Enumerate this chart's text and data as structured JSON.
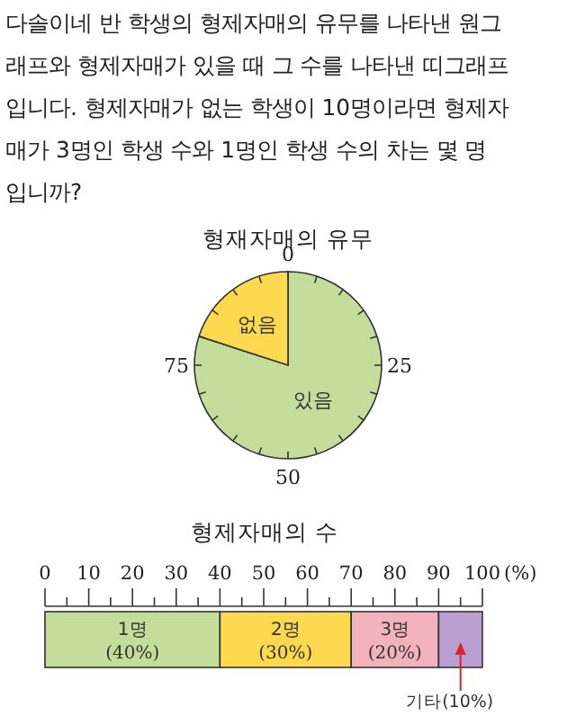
{
  "chart_data": [
    {
      "type": "other",
      "annotations": [
        "다솔이네 반 학생의 형제자매의 유무를 나타낸 원그",
        "래프와 형제자매가 있을 때 그 수를 나타낸 띠그래프",
        "입니다. 형제자매가 없는 학생이 10명이라면 형제자",
        "매가 3명인 학생 수와 1명인 학생 수의 차는 몇 명",
        "입니까?"
      ]
    },
    {
      "type": "pie",
      "title": "형재자매의 유무",
      "categories": [
        "있음",
        "없음"
      ],
      "values": [
        80,
        20
      ],
      "colors": [
        "#c5dd9a",
        "#fdd94f"
      ],
      "annotations": [
        "0",
        "25",
        "50",
        "75"
      ]
    },
    {
      "type": "bar",
      "title": "형제자매의 수",
      "orientation": "horizontal",
      "stacked": true,
      "categories": [
        null
      ],
      "xlim": [
        0,
        100
      ],
      "xticks": [
        0,
        10,
        20,
        30,
        40,
        50,
        60,
        70,
        80,
        90,
        100
      ],
      "xlabel": "(%)",
      "series": [
        {
          "name": "1명",
          "color": "#c5dd9a",
          "values": [
            40
          ],
          "value_labels": [
            "(40%)"
          ]
        },
        {
          "name": "2명",
          "color": "#fdd94f",
          "values": [
            30
          ],
          "value_labels": [
            "(30%)"
          ]
        },
        {
          "name": "3명",
          "color": "#f2b3bd",
          "values": [
            20
          ],
          "value_labels": [
            "(20%)"
          ]
        },
        {
          "name": "기타",
          "color": "#b9a0d0",
          "values": [
            10
          ],
          "value_labels": [
            "(10%)"
          ]
        }
      ]
    }
  ]
}
